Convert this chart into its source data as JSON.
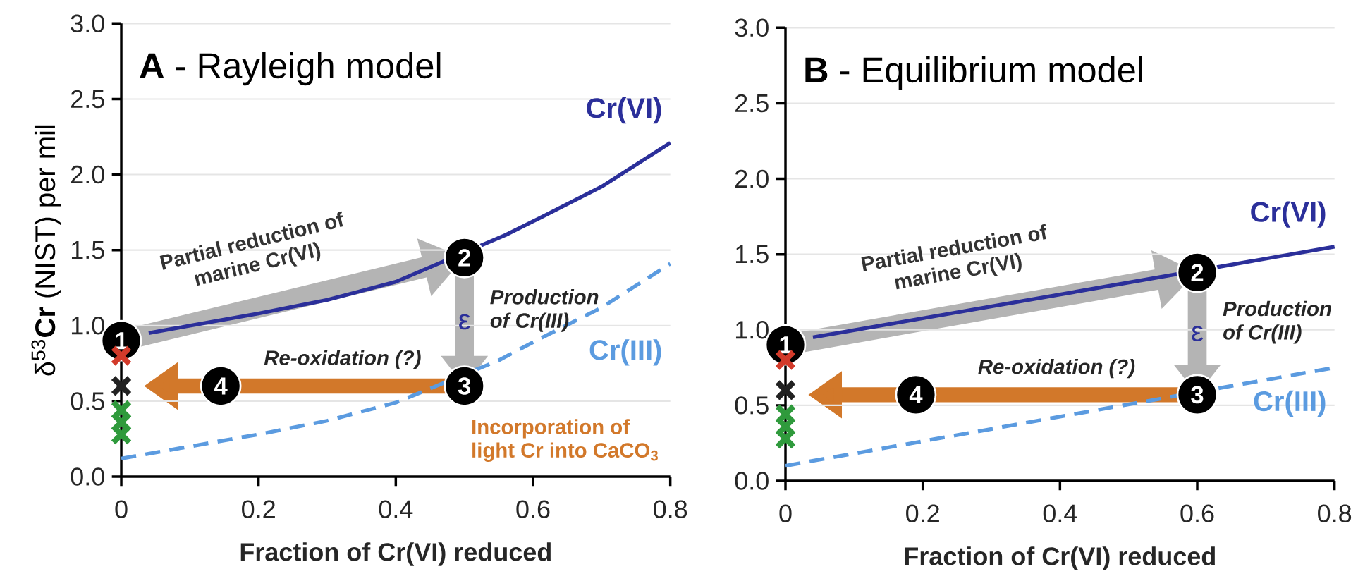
{
  "chart_data": [
    {
      "type": "line",
      "title": "**A** - Rayleigh model",
      "xlabel": "Fraction of Cr(VI) reduced",
      "ylabel": "δ$^{53}$**Cr** (NIST) per mil",
      "xlim": [
        0,
        0.8
      ],
      "ylim": [
        0,
        3
      ],
      "xticks": [
        0,
        0.2,
        0.4,
        0.6,
        0.8
      ],
      "yticks": [
        {
          "value": 0,
          "label": "0.0"
        },
        {
          "value": 0.5,
          "label": "0.5"
        },
        {
          "value": 1,
          "label": "1.0"
        },
        {
          "value": 1.5,
          "label": "1.5"
        },
        {
          "value": 2,
          "label": "2.0"
        },
        {
          "value": 2.5,
          "label": "2.5"
        },
        {
          "value": 3,
          "label": "3.0"
        }
      ],
      "grid": "y",
      "series": [
        {
          "name": "Cr(VI)",
          "line_style": "solid",
          "color": "#2b2f9a",
          "x": [
            0.04,
            0.1,
            0.2,
            0.3,
            0.4,
            0.56,
            0.6,
            0.7,
            0.8
          ],
          "values": [
            0.95,
            1.0,
            1.08,
            1.17,
            1.29,
            1.6,
            1.69,
            1.92,
            2.21
          ]
        },
        {
          "name": "Cr(III)",
          "line_style": "dashed",
          "color": "#5b9be0",
          "x": [
            0,
            0.1,
            0.2,
            0.3,
            0.4,
            0.55,
            0.6,
            0.7,
            0.8
          ],
          "values": [
            0.12,
            0.2,
            0.28,
            0.37,
            0.49,
            0.77,
            0.89,
            1.12,
            1.41
          ]
        },
        {
          "type": "scatter",
          "marker": "cross",
          "color": "#d23a2a",
          "x": [
            0
          ],
          "values": [
            0.8
          ]
        },
        {
          "type": "scatter",
          "marker": "cross",
          "color": "#222222",
          "x": [
            0
          ],
          "values": [
            0.6
          ]
        },
        {
          "type": "scatter",
          "marker": "cross",
          "color": "#2f9a3c",
          "x": [
            0,
            0,
            0
          ],
          "values": [
            0.44,
            0.36,
            0.28
          ]
        }
      ],
      "annotations": [
        {
          "text": "1",
          "x": 0,
          "y": 0.9
        },
        {
          "text": "2",
          "x": 0.5,
          "y": 1.45
        },
        {
          "text": "3",
          "x": 0.5,
          "y": 0.6
        },
        {
          "text": "4",
          "x": 0.145,
          "y": 0.6
        },
        "Partial reduction of marine Cr(VI)",
        "Production of Cr(III)",
        "ε",
        "Re-oxidation (?)",
        "Incorporation of light Cr into CaCO$_{3}$"
      ]
    },
    {
      "type": "line",
      "title": "**B** - Equilibrium model",
      "xlabel": "Fraction of Cr(VI) reduced",
      "xlim": [
        0,
        0.8
      ],
      "ylim": [
        0,
        3
      ],
      "xticks": [
        0,
        0.2,
        0.4,
        0.6,
        0.8
      ],
      "yticks": [
        {
          "value": 0,
          "label": "0.0"
        },
        {
          "value": 0.5,
          "label": "0.5"
        },
        {
          "value": 1,
          "label": "1.0"
        },
        {
          "value": 1.5,
          "label": "1.5"
        },
        {
          "value": 2,
          "label": "2.0"
        },
        {
          "value": 2.5,
          "label": "2.5"
        },
        {
          "value": 3,
          "label": "3.0"
        }
      ],
      "grid": "y",
      "series": [
        {
          "name": "Cr(VI)",
          "line_style": "solid",
          "color": "#2b2f9a",
          "x": [
            0.04,
            0.8
          ],
          "values": [
            0.95,
            1.55
          ]
        },
        {
          "name": "Cr(III)",
          "line_style": "dashed",
          "color": "#5b9be0",
          "x": [
            0,
            0.8
          ],
          "values": [
            0.1,
            0.75
          ]
        },
        {
          "type": "scatter",
          "marker": "cross",
          "color": "#d23a2a",
          "x": [
            0
          ],
          "values": [
            0.8
          ]
        },
        {
          "type": "scatter",
          "marker": "cross",
          "color": "#222222",
          "x": [
            0
          ],
          "values": [
            0.6
          ]
        },
        {
          "type": "scatter",
          "marker": "cross",
          "color": "#2f9a3c",
          "x": [
            0,
            0,
            0
          ],
          "values": [
            0.44,
            0.36,
            0.28
          ]
        }
      ],
      "annotations": [
        {
          "text": "1",
          "x": 0,
          "y": 0.9
        },
        {
          "text": "2",
          "x": 0.6,
          "y": 1.38
        },
        {
          "text": "3",
          "x": 0.6,
          "y": 0.57
        },
        {
          "text": "4",
          "x": 0.19,
          "y": 0.57
        },
        "Partial reduction of marine Cr(VI)",
        "Production of Cr(III)",
        "ε",
        "Re-oxidation (?)"
      ]
    }
  ]
}
